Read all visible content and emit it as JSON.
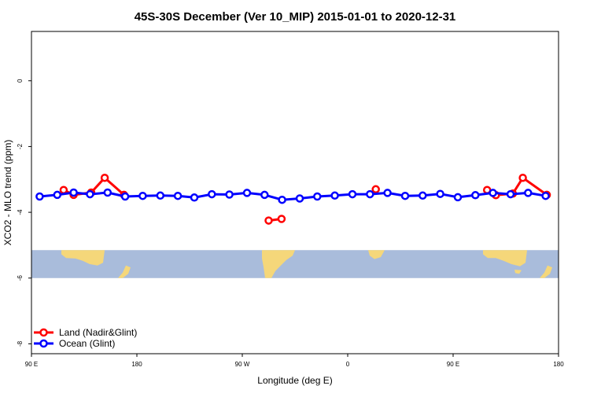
{
  "chart_data": {
    "type": "line",
    "title": "45S-30S December (Ver 10_MIP)   2015-01-01 to 2020-12-31",
    "xlabel": "Longitude (deg E)",
    "ylabel": "XCO2 - MLO trend (ppm)",
    "xlim": [
      90,
      540
    ],
    "ylim": [
      -8.3,
      1.5
    ],
    "xticks": [
      {
        "value": 90,
        "label": "90 E"
      },
      {
        "value": 180,
        "label": "180"
      },
      {
        "value": 270,
        "label": "90 W"
      },
      {
        "value": 360,
        "label": "0"
      },
      {
        "value": 450,
        "label": "90 E"
      },
      {
        "value": 540,
        "label": "180"
      }
    ],
    "yticks": [
      {
        "value": 0,
        "label": "0"
      },
      {
        "value": -2,
        "label": "-2"
      },
      {
        "value": -4,
        "label": "-4"
      },
      {
        "value": -6,
        "label": "-6"
      },
      {
        "value": -8,
        "label": "-8"
      }
    ],
    "map_band": {
      "ymin": -6.0,
      "ymax": -5.15,
      "ocean_color": "#a9bcdb",
      "land_color": "#f5d77a"
    },
    "legend_position": "bottom-left",
    "series": [
      {
        "name": "Land (Nadir&Glint)",
        "color": "#ff0000",
        "segments": [
          [
            [
              117.5,
              -3.32
            ],
            [
              126,
              -3.47
            ],
            [
              141,
              -3.4
            ],
            [
              152.5,
              -2.95
            ],
            [
              169,
              -3.47
            ]
          ],
          [
            [
              292.5,
              -4.25
            ],
            [
              303.5,
              -4.2
            ]
          ],
          [
            [
              384,
              -3.3
            ]
          ],
          [
            [
              479,
              -3.32
            ],
            [
              486.5,
              -3.48
            ],
            [
              501,
              -3.43
            ],
            [
              509.5,
              -2.95
            ],
            [
              530,
              -3.47
            ]
          ]
        ]
      },
      {
        "name": "Ocean (Glint)",
        "color": "#0000ff",
        "segments": [
          [
            [
              97,
              -3.52
            ],
            [
              112,
              -3.47
            ],
            [
              126,
              -3.4
            ],
            [
              140,
              -3.45
            ],
            [
              155,
              -3.4
            ],
            [
              170,
              -3.52
            ],
            [
              185,
              -3.5
            ],
            [
              200,
              -3.49
            ],
            [
              215,
              -3.5
            ],
            [
              229,
              -3.55
            ],
            [
              244,
              -3.45
            ],
            [
              259,
              -3.46
            ],
            [
              274,
              -3.41
            ],
            [
              289,
              -3.47
            ],
            [
              304,
              -3.62
            ],
            [
              319,
              -3.58
            ],
            [
              334,
              -3.52
            ],
            [
              349,
              -3.49
            ],
            [
              364,
              -3.45
            ],
            [
              379,
              -3.45
            ],
            [
              394,
              -3.41
            ],
            [
              409,
              -3.5
            ],
            [
              424,
              -3.49
            ],
            [
              439,
              -3.44
            ],
            [
              454,
              -3.54
            ],
            [
              469,
              -3.48
            ],
            [
              484,
              -3.41
            ],
            [
              499,
              -3.45
            ],
            [
              514,
              -3.41
            ],
            [
              529,
              -3.5
            ]
          ]
        ]
      }
    ]
  }
}
